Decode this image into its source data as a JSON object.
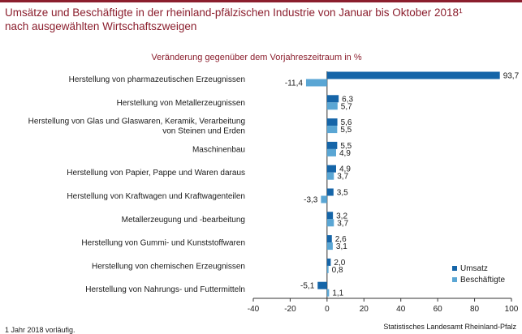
{
  "title_line1": "Umsätze und Beschäftigte in der rheinland-pfälzischen Industrie von Januar bis Oktober 2018¹",
  "title_line2": "nach ausgewählten Wirtschaftszweigen",
  "footnote": "1 Jahr 2018 vorläufig.",
  "source": "Statistisches Landesamt Rheinland-Pfalz",
  "colors": {
    "accent": "#8b1e2d",
    "umsatz": "#1565a8",
    "beschaeftigte": "#5aa6d4"
  },
  "chart_data": {
    "type": "bar",
    "orientation": "horizontal",
    "subtitle": "Veränderung gegenüber dem Vorjahreszeitraum in %",
    "categories": [
      [
        "Herstellung von pharmazeutischen Erzeugnissen"
      ],
      [
        "Herstellung von Metallerzeugnissen"
      ],
      [
        "Herstellung von Glas und Glaswaren, Keramik, Verarbeitung",
        "von Steinen und Erden"
      ],
      [
        "Maschinenbau"
      ],
      [
        "Herstellung von Papier, Pappe und Waren daraus"
      ],
      [
        "Herstellung von Kraftwagen und Kraftwagenteilen"
      ],
      [
        "Metallerzeugung und -bearbeitung"
      ],
      [
        "Herstellung von Gummi- und Kunststoffwaren"
      ],
      [
        "Herstellung von chemischen Erzeugnissen"
      ],
      [
        "Herstellung von Nahrungs- und Futtermitteln"
      ]
    ],
    "series": [
      {
        "name": "Umsatz",
        "values": [
          93.7,
          6.3,
          5.6,
          5.5,
          4.9,
          3.5,
          3.2,
          2.6,
          2.0,
          -5.1
        ],
        "labels": [
          "93,7",
          "6,3",
          "5,6",
          "5,5",
          "4,9",
          "3,5",
          "3,2",
          "2,6",
          "2,0",
          "-5,1"
        ]
      },
      {
        "name": "Beschäftigte",
        "values": [
          -11.4,
          5.7,
          5.5,
          4.9,
          3.7,
          -3.3,
          3.7,
          3.1,
          0.8,
          1.1
        ],
        "labels": [
          "-11,4",
          "5,7",
          "5,5",
          "4,9",
          "3,7",
          "-3,3",
          "3,7",
          "3,1",
          "0,8",
          "1,1"
        ]
      }
    ],
    "xlim": [
      -40,
      100
    ],
    "xticks": [
      -40,
      -20,
      0,
      20,
      40,
      60,
      80,
      100
    ],
    "xtick_labels": [
      "-40",
      "-20",
      "0",
      "20",
      "40",
      "60",
      "80",
      "100"
    ],
    "grid": false,
    "legend_position": "bottom-right"
  }
}
